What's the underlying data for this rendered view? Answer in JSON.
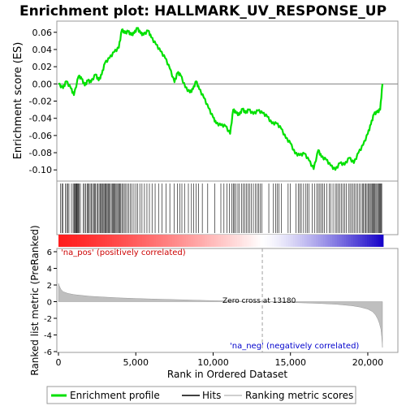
{
  "title": "Enrichment plot: HALLMARK_UV_RESPONSE_UP",
  "colors": {
    "es_line": "#00e000",
    "hit": "#000000",
    "metric_fill": "#bfbfbf",
    "zero_line": "#a0a0a0",
    "pos_label": "#cc0000",
    "neg_label": "#0000cc",
    "bar_pos": "#ff0000",
    "bar_mid": "#ffffff",
    "bar_neg": "#0000cc"
  },
  "chart_data": [
    {
      "type": "line",
      "name": "enrichment-profile",
      "ylabel": "Enrichment score (ES)",
      "xlim": [
        0,
        21000
      ],
      "ylim": [
        -0.113,
        0.073
      ],
      "yticks": [
        0.06,
        0.04,
        0.02,
        0.0,
        -0.02,
        -0.04,
        -0.06,
        -0.08,
        -0.1
      ],
      "ytick_labels": [
        "0.06",
        "0.04",
        "0.02",
        "0.00",
        "-0.02",
        "-0.04",
        "-0.06",
        "-0.08",
        "-0.10"
      ],
      "grid": false,
      "x": [
        0,
        300,
        500,
        800,
        1000,
        1300,
        1500,
        1700,
        1900,
        2100,
        2400,
        2600,
        2800,
        3000,
        3300,
        3600,
        3900,
        4100,
        4300,
        4500,
        4700,
        4900,
        5100,
        5300,
        5500,
        5800,
        6000,
        6300,
        6600,
        6900,
        7200,
        7500,
        7700,
        7900,
        8200,
        8500,
        8700,
        8900,
        9100,
        9400,
        9700,
        10000,
        10200,
        10500,
        10800,
        11100,
        11300,
        11500,
        11700,
        11900,
        12100,
        12300,
        12600,
        12900,
        13200,
        13500,
        13800,
        14100,
        14400,
        14700,
        15000,
        15300,
        15600,
        15900,
        16200,
        16500,
        16800,
        17000,
        17300,
        17600,
        17900,
        18200,
        18500,
        18800,
        19100,
        19400,
        19700,
        20000,
        20200,
        20400,
        20600,
        20800,
        20950
      ],
      "y": [
        0.0,
        -0.005,
        0.003,
        -0.005,
        -0.013,
        0.009,
        0.006,
        -0.002,
        0.004,
        0.002,
        0.011,
        0.004,
        0.011,
        0.024,
        0.03,
        0.037,
        0.042,
        0.063,
        0.059,
        0.061,
        0.057,
        0.059,
        0.065,
        0.059,
        0.057,
        0.062,
        0.054,
        0.046,
        0.038,
        0.03,
        0.018,
        0.002,
        0.013,
        0.01,
        -0.004,
        -0.01,
        -0.006,
        0.003,
        -0.006,
        -0.016,
        -0.028,
        -0.039,
        -0.046,
        -0.048,
        -0.049,
        -0.058,
        -0.03,
        -0.034,
        -0.036,
        -0.029,
        -0.034,
        -0.03,
        -0.035,
        -0.031,
        -0.034,
        -0.038,
        -0.046,
        -0.046,
        -0.052,
        -0.063,
        -0.069,
        -0.081,
        -0.083,
        -0.081,
        -0.089,
        -0.099,
        -0.077,
        -0.085,
        -0.088,
        -0.095,
        -0.1,
        -0.092,
        -0.094,
        -0.086,
        -0.092,
        -0.08,
        -0.071,
        -0.058,
        -0.047,
        -0.035,
        -0.033,
        -0.03,
        0.0
      ]
    },
    {
      "type": "scatter",
      "name": "hits",
      "hit_positions": [
        120,
        220,
        280,
        440,
        530,
        600,
        680,
        840,
        950,
        1010,
        1060,
        1110,
        1160,
        1200,
        1250,
        1300,
        1350,
        1420,
        1600,
        1680,
        1750,
        1850,
        1900,
        1980,
        2050,
        2120,
        2200,
        2280,
        2350,
        2400,
        2480,
        2560,
        2630,
        2700,
        2760,
        2830,
        2880,
        2940,
        3000,
        3050,
        3100,
        3160,
        3220,
        3280,
        3350,
        3420,
        3480,
        3540,
        3600,
        3660,
        3720,
        3780,
        3840,
        3900,
        3960,
        4030,
        4100,
        4180,
        4260,
        4350,
        4450,
        4550,
        4650,
        4760,
        4880,
        5000,
        5130,
        5260,
        5400,
        5560,
        5720,
        5880,
        6050,
        6250,
        6470,
        6700,
        6950,
        7200,
        7480,
        7700,
        7850,
        7980,
        8150,
        8400,
        8600,
        8750,
        8900,
        9050,
        9300,
        9650,
        10100,
        10500,
        10700,
        10900,
        11050,
        11200,
        11300,
        11380,
        11470,
        11600,
        11700,
        11850,
        11950,
        12050,
        12150,
        12250,
        12350,
        12480,
        12600,
        12720,
        12850,
        12950,
        13050,
        13150,
        13600,
        13900,
        14050,
        14150,
        14250,
        14400,
        14850,
        15000,
        15350,
        15500,
        15600,
        15700,
        15850,
        16000,
        16100,
        16200,
        16400,
        16550,
        16700,
        16800,
        16900,
        17000,
        17100,
        17200,
        17350,
        17500,
        17600,
        17750,
        17900,
        18000,
        18100,
        18200,
        18300,
        18400,
        18500,
        18620,
        18750,
        18850,
        18950,
        19050,
        19150,
        19250,
        19350,
        19450,
        19550,
        19650,
        19720,
        19800,
        19870,
        19950,
        20030,
        20100,
        20160,
        20220,
        20280,
        20340,
        20400,
        20460,
        20520,
        20580,
        20640,
        20700,
        20750,
        20800,
        20850,
        20900
      ]
    },
    {
      "type": "area",
      "name": "ranked-list-metric",
      "ylabel": "Ranked list metric (PreRanked)",
      "xlabel": "Rank in Ordered Dataset",
      "xlim": [
        0,
        21000
      ],
      "ylim": [
        -6,
        6
      ],
      "xticks": [
        0,
        5000,
        10000,
        15000,
        20000
      ],
      "xtick_labels": [
        "0",
        "5,000",
        "10,000",
        "15,000",
        "20,000"
      ],
      "yticks": [
        6,
        4,
        2,
        0,
        -2,
        -4,
        -6
      ],
      "ytick_labels": [
        "6",
        "4",
        "2",
        "0",
        "-2",
        "-4",
        "-6"
      ],
      "x": [
        0,
        50,
        150,
        300,
        600,
        1000,
        1500,
        2000,
        3000,
        4000,
        5000,
        6000,
        8000,
        10000,
        12000,
        13180,
        14000,
        15000,
        16000,
        17000,
        18000,
        19000,
        19500,
        20000,
        20300,
        20500,
        20650,
        20750,
        20850,
        20900,
        20950
      ],
      "y": [
        2.2,
        1.9,
        1.5,
        1.2,
        1.0,
        0.85,
        0.75,
        0.65,
        0.55,
        0.45,
        0.38,
        0.32,
        0.22,
        0.12,
        0.04,
        0.0,
        -0.05,
        -0.1,
        -0.16,
        -0.22,
        -0.32,
        -0.5,
        -0.65,
        -0.9,
        -1.2,
        -1.6,
        -2.1,
        -2.6,
        -3.3,
        -4.2,
        -5.5
      ],
      "annotations": {
        "pos_label": "'na_pos' (positively correlated)",
        "neg_label": "'na_neg' (negatively correlated)",
        "zero_cross": "Zero cross at 13180",
        "zero_cross_rank": 13180
      }
    }
  ],
  "legend": {
    "items": [
      "Enrichment profile",
      "Hits",
      "Ranking metric scores"
    ]
  }
}
